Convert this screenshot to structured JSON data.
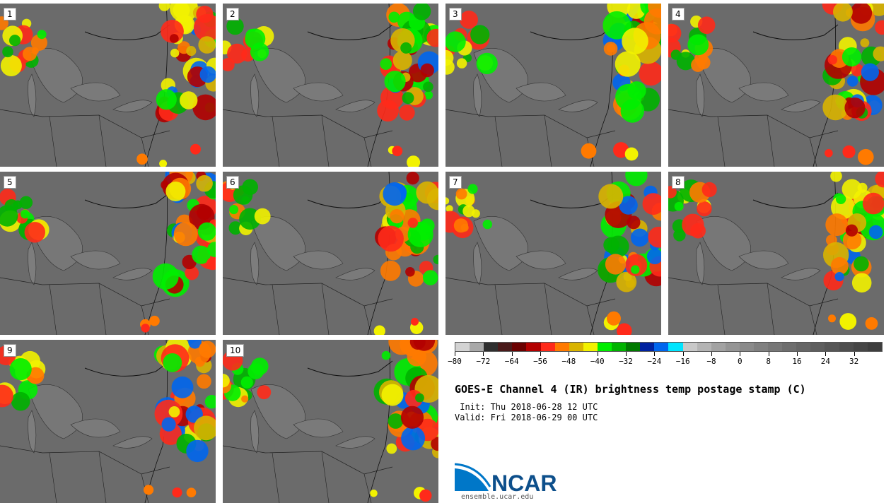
{
  "panels": [
    {
      "label": "1"
    },
    {
      "label": "2"
    },
    {
      "label": "3"
    },
    {
      "label": "4"
    },
    {
      "label": "5"
    },
    {
      "label": "6"
    },
    {
      "label": "7"
    },
    {
      "label": "8"
    },
    {
      "label": "9"
    },
    {
      "label": "10"
    }
  ],
  "colorbar": {
    "colors": [
      "#d3d3d3",
      "#a9a9a9",
      "#2f2f2f",
      "#4a1a1a",
      "#6b0000",
      "#b30000",
      "#ff2a1a",
      "#ff7a00",
      "#d9b400",
      "#f2f200",
      "#00ee00",
      "#00b300",
      "#007a00",
      "#0022a0",
      "#0066ee",
      "#00e5ff",
      "#c8c8c8",
      "#b4b4b4",
      "#a2a2a2",
      "#959595",
      "#8a8a8a",
      "#808080",
      "#777777",
      "#6e6e6e",
      "#666666",
      "#5e5e5e",
      "#565656",
      "#4e4e4e",
      "#464646",
      "#3e3e3e"
    ],
    "min": -80,
    "max": 40,
    "tick_values": [
      -80,
      -72,
      -64,
      -56,
      -48,
      -40,
      -32,
      -24,
      -16,
      -8,
      0,
      8,
      16,
      24,
      32
    ],
    "tick_labels": [
      "−80",
      "−72",
      "−64",
      "−56",
      "−48",
      "−40",
      "−32",
      "−24",
      "−16",
      "−8",
      "0",
      "8",
      "16",
      "24",
      "32"
    ]
  },
  "title": "GOES-E Channel 4 (IR) brightness temp postage stamp (C)",
  "init_line": " Init: Thu 2018-06-28 12 UTC",
  "valid_line": "Valid: Fri 2018-06-29 00 UTC",
  "logo": {
    "text": "NCAR",
    "url": "ensemble.ucar.edu",
    "color": "#0d4f8b"
  }
}
